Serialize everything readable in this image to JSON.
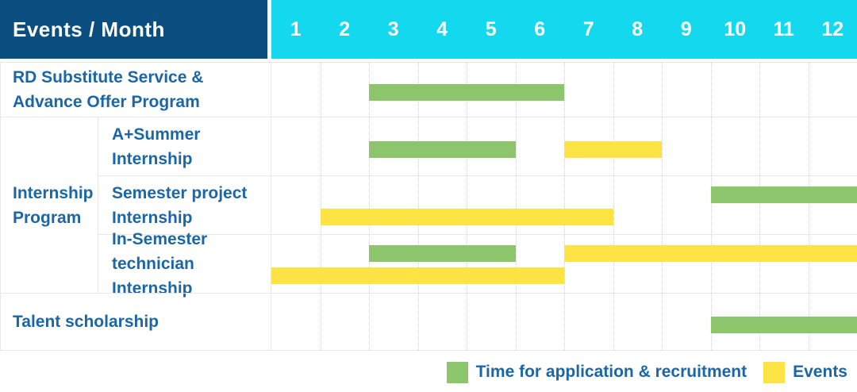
{
  "header": {
    "title": "Events / Month",
    "months": [
      "1",
      "2",
      "3",
      "4",
      "5",
      "6",
      "7",
      "8",
      "9",
      "10",
      "11",
      "12"
    ]
  },
  "group": {
    "label": "Internship Program",
    "lines": [
      "Internship",
      "Program"
    ]
  },
  "colors": {
    "header_bg": "#0b4f80",
    "months_bg": "#14d8ee",
    "application_bar": "#8cc56b",
    "event_bar": "#fde344",
    "label_text": "#1b66a7",
    "grid_line": "#e8e8e8",
    "month_divider": "#d4d4d4"
  },
  "legend": {
    "items": [
      {
        "kind": "application",
        "label": "Time for application & recruitment"
      },
      {
        "kind": "event",
        "label": "Events"
      }
    ]
  },
  "chart_data": {
    "type": "gantt",
    "unit": "month",
    "x_range": [
      1,
      12
    ],
    "x_ticks": [
      "1",
      "2",
      "3",
      "4",
      "5",
      "6",
      "7",
      "8",
      "9",
      "10",
      "11",
      "12"
    ],
    "series_kinds": {
      "application": "Time for application & recruitment",
      "event": "Events"
    },
    "rows": [
      {
        "group": "",
        "label": "RD Substitute Service & Advance Offer Program",
        "label_lines": [
          "RD Substitute Service &",
          "Advance Offer Program"
        ],
        "bars": [
          {
            "kind": "application",
            "start_month": 3,
            "end_month": 6,
            "lane": "center"
          }
        ]
      },
      {
        "group": "Internship Program",
        "label": "A+Summer Internship",
        "label_lines": [
          "A+Summer",
          "Internship"
        ],
        "bars": [
          {
            "kind": "application",
            "start_month": 3,
            "end_month": 5,
            "lane": "center"
          },
          {
            "kind": "event",
            "start_month": 7,
            "end_month": 8,
            "lane": "center"
          }
        ]
      },
      {
        "group": "Internship Program",
        "label": "Semester project Internship",
        "label_lines": [
          "Semester project",
          "Internship"
        ],
        "bars": [
          {
            "kind": "application",
            "start_month": 10,
            "end_month": 12,
            "lane": "top"
          },
          {
            "kind": "event",
            "start_month": 2,
            "end_month": 7,
            "lane": "bottom"
          }
        ]
      },
      {
        "group": "Internship Program",
        "label": "In-Semester technician Internship",
        "label_lines": [
          "In-Semester",
          "technician Internship"
        ],
        "bars": [
          {
            "kind": "application",
            "start_month": 3,
            "end_month": 5,
            "lane": "top"
          },
          {
            "kind": "event",
            "start_month": 7,
            "end_month": 12,
            "lane": "top"
          },
          {
            "kind": "event",
            "start_month": 1,
            "end_month": 6,
            "lane": "bottom"
          }
        ]
      },
      {
        "group": "",
        "label": "Talent scholarship",
        "label_lines": [
          "Talent scholarship"
        ],
        "bars": [
          {
            "kind": "application",
            "start_month": 10,
            "end_month": 12,
            "lane": "center"
          }
        ]
      }
    ]
  }
}
